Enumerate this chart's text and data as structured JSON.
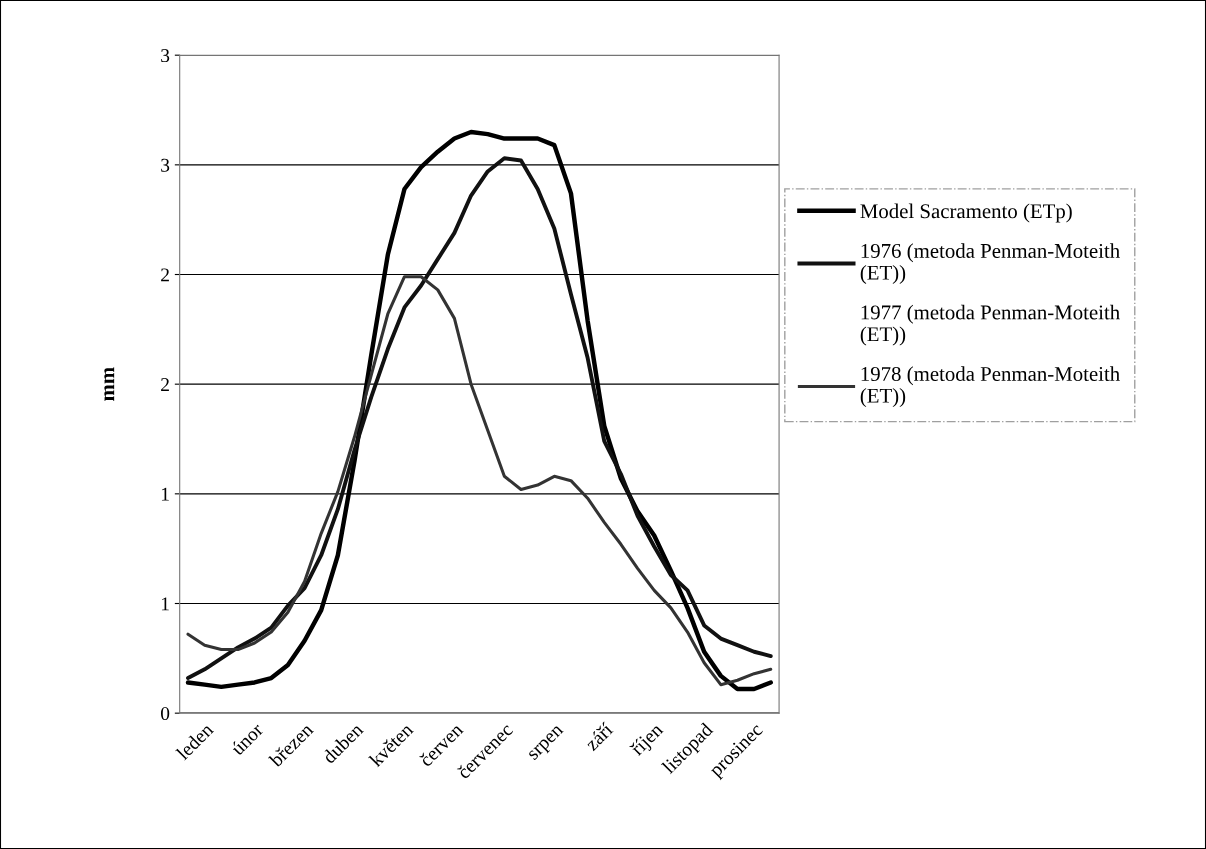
{
  "chart_data": {
    "type": "line",
    "ylabel": "mm",
    "categories": [
      null,
      "leden",
      null,
      null,
      "únor",
      null,
      null,
      "březen",
      null,
      null,
      "duben",
      null,
      null,
      "květen",
      null,
      null,
      "červen",
      null,
      null,
      "červenec",
      null,
      null,
      "srpen",
      null,
      null,
      "září",
      null,
      null,
      "říjen",
      null,
      null,
      "listopad",
      null,
      null,
      "prosinec",
      null
    ],
    "ylim": [
      0,
      3
    ],
    "yticks": [
      0,
      {
        "value": 0.5,
        "label": "1"
      },
      1,
      {
        "value": 1.5,
        "label": "2"
      },
      2,
      {
        "value": 2.5,
        "label": "3"
      },
      3
    ],
    "grid": "y",
    "legend": "right",
    "marker": "none",
    "line_style": "solid",
    "series": [
      {
        "name": "Model Sacramento (ETp)",
        "color": "#000000",
        "values": [
          0.14,
          0.13,
          0.12,
          0.13,
          0.14,
          0.16,
          0.22,
          0.33,
          0.47,
          0.72,
          1.15,
          1.63,
          2.09,
          2.39,
          2.49,
          2.56,
          2.62,
          2.65,
          2.64,
          2.62,
          2.62,
          2.62,
          2.59,
          2.37,
          1.79,
          1.31,
          1.07,
          0.92,
          0.81,
          0.65,
          0.48,
          0.28,
          0.17,
          0.11,
          0.11,
          0.14
        ]
      },
      {
        "name": "1976 (metoda Penman-Moteith (ET))",
        "color": "#111111",
        "values": [
          0.16,
          0.2,
          0.25,
          0.3,
          0.34,
          0.39,
          0.49,
          0.57,
          0.72,
          0.93,
          1.2,
          1.44,
          1.66,
          1.85,
          1.95,
          2.07,
          2.19,
          2.36,
          2.47,
          2.53,
          2.52,
          2.39,
          2.21,
          1.91,
          1.62,
          1.24,
          1.09,
          0.9,
          0.76,
          0.63,
          0.56,
          0.4,
          0.34,
          0.31,
          0.28,
          0.26
        ]
      },
      {
        "name": "1977 (metoda Penman-Moteith (ET))",
        "values": [
          null,
          null,
          null,
          null,
          null,
          null,
          null,
          null,
          null,
          null,
          null,
          null,
          null,
          null,
          null,
          null,
          null,
          null,
          null,
          null,
          null,
          null,
          null,
          null,
          null,
          null,
          null,
          null,
          null,
          null,
          null,
          null,
          null,
          null,
          null,
          null
        ]
      },
      {
        "name": "1978 (metoda Penman-Moteith (ET))",
        "color": "#333333",
        "values": [
          0.36,
          0.31,
          0.29,
          0.29,
          0.32,
          0.37,
          0.46,
          0.6,
          0.82,
          1.01,
          1.26,
          1.54,
          1.82,
          1.99,
          1.99,
          1.93,
          1.8,
          1.5,
          1.29,
          1.08,
          1.02,
          1.04,
          1.08,
          1.06,
          0.98,
          0.87,
          0.77,
          0.66,
          0.56,
          0.48,
          0.37,
          0.23,
          0.13,
          0.15,
          0.18,
          0.2
        ]
      }
    ]
  }
}
